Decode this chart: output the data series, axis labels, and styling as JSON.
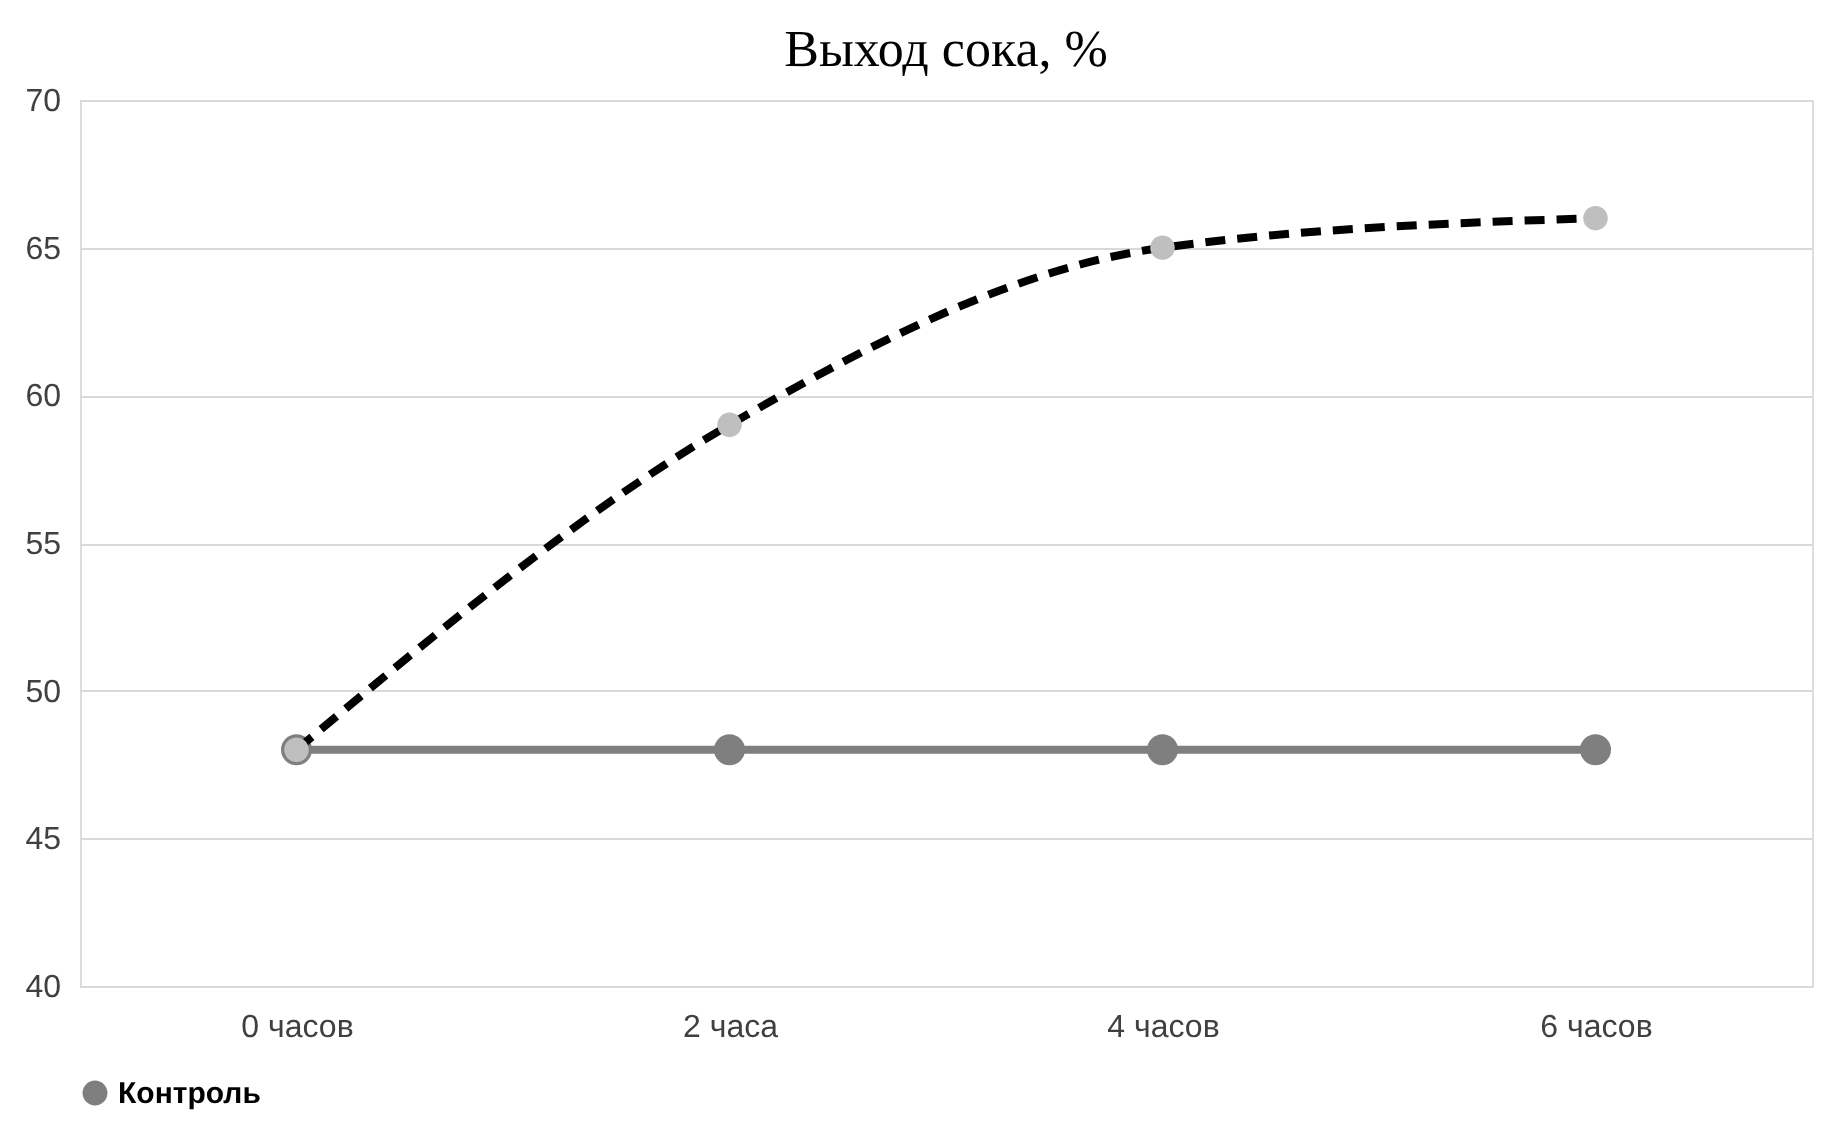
{
  "chart_data": {
    "type": "line",
    "title": "Выход сока, %",
    "categories": [
      "0 часов",
      "2 часа",
      "4 часов",
      "6 часов"
    ],
    "series": [
      {
        "name": "Контроль",
        "color": "#7f7f7f",
        "values": [
          48,
          48,
          48,
          48
        ],
        "line_style": "solid"
      },
      {
        "color": "#000000",
        "values": [
          48,
          59,
          65,
          66
        ],
        "line_style": "dashed"
      }
    ],
    "ylim": [
      40,
      70
    ],
    "yticks": [
      40,
      45,
      50,
      55,
      60,
      65,
      70
    ],
    "grid": "y",
    "legend": "bottom",
    "marker": "circle"
  }
}
